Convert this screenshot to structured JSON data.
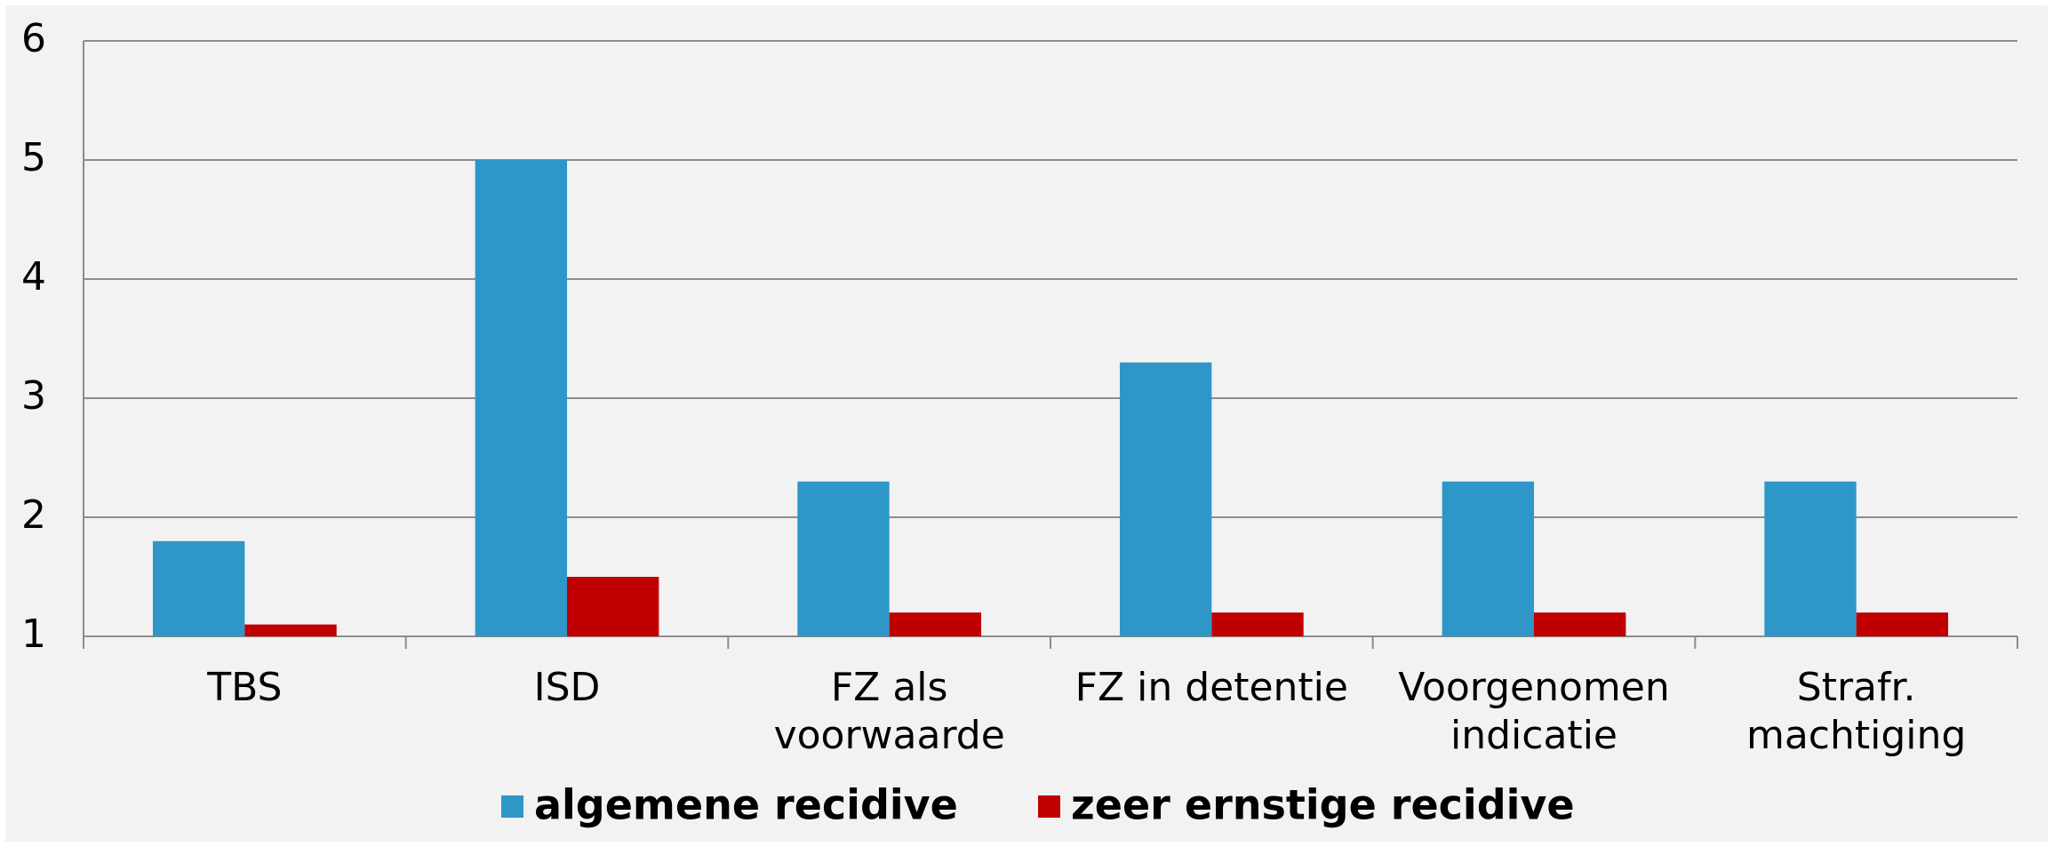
{
  "chart_data": {
    "type": "bar",
    "categories": [
      "TBS",
      "ISD",
      "FZ als\nvoorwaarde",
      "FZ in detentie",
      "Voorgenomen\nindicatie",
      "Strafr.\nmachtiging"
    ],
    "series": [
      {
        "name": "algemene recidive",
        "color": "#2e97c8",
        "values": [
          1.8,
          5.0,
          2.3,
          3.3,
          2.3,
          2.3
        ]
      },
      {
        "name": "zeer ernstige recidive",
        "color": "#c00000",
        "values": [
          1.1,
          1.5,
          1.2,
          1.2,
          1.2,
          1.2
        ]
      }
    ],
    "ylim": [
      1,
      6
    ],
    "yticks": [
      1,
      2,
      3,
      4,
      5,
      6
    ],
    "grid": true,
    "legend": "bottom"
  }
}
